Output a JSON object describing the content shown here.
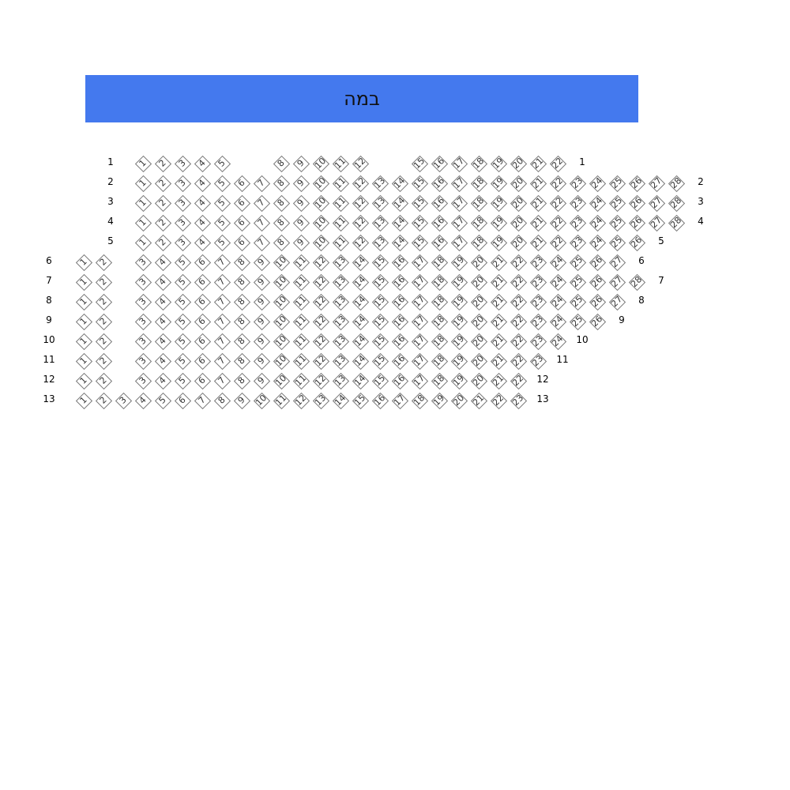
{
  "stage": {
    "label": "במה",
    "color": "#4479ee"
  },
  "rows": [
    {
      "label": "1",
      "seats": [
        1,
        2,
        3,
        4,
        5,
        8,
        9,
        10,
        11,
        12,
        15,
        16,
        17,
        18,
        19,
        20,
        21,
        22
      ]
    },
    {
      "label": "2",
      "seats": [
        1,
        2,
        3,
        4,
        5,
        6,
        7,
        8,
        9,
        10,
        11,
        12,
        13,
        14,
        15,
        16,
        17,
        18,
        19,
        20,
        21,
        22,
        23,
        24,
        25,
        26,
        27,
        28
      ]
    },
    {
      "label": "3",
      "seats": [
        1,
        2,
        3,
        4,
        5,
        6,
        7,
        8,
        9,
        10,
        11,
        12,
        13,
        14,
        15,
        16,
        17,
        18,
        19,
        20,
        21,
        22,
        23,
        24,
        25,
        26,
        27,
        28
      ]
    },
    {
      "label": "4",
      "seats": [
        1,
        2,
        3,
        4,
        5,
        6,
        7,
        8,
        9,
        10,
        11,
        12,
        13,
        14,
        15,
        16,
        17,
        18,
        19,
        20,
        21,
        22,
        23,
        24,
        25,
        26,
        27,
        28
      ]
    },
    {
      "label": "5",
      "seats": [
        1,
        2,
        3,
        4,
        5,
        6,
        7,
        8,
        9,
        10,
        11,
        12,
        13,
        14,
        15,
        16,
        17,
        18,
        19,
        20,
        21,
        22,
        23,
        24,
        25,
        26
      ]
    },
    {
      "label": "6",
      "seats": [
        1,
        2,
        3,
        4,
        5,
        6,
        7,
        8,
        9,
        10,
        11,
        12,
        13,
        14,
        15,
        16,
        17,
        18,
        19,
        20,
        21,
        22,
        23,
        24,
        25,
        26,
        27
      ]
    },
    {
      "label": "7",
      "seats": [
        1,
        2,
        3,
        4,
        5,
        6,
        7,
        8,
        9,
        10,
        11,
        12,
        13,
        14,
        15,
        16,
        17,
        18,
        19,
        20,
        21,
        22,
        23,
        24,
        25,
        26,
        27,
        28
      ]
    },
    {
      "label": "8",
      "seats": [
        1,
        2,
        3,
        4,
        5,
        6,
        7,
        8,
        9,
        10,
        11,
        12,
        13,
        14,
        15,
        16,
        17,
        18,
        19,
        20,
        21,
        22,
        23,
        24,
        25,
        26,
        27
      ]
    },
    {
      "label": "9",
      "seats": [
        1,
        2,
        3,
        4,
        5,
        6,
        7,
        8,
        9,
        10,
        11,
        12,
        13,
        14,
        15,
        16,
        17,
        18,
        19,
        20,
        21,
        22,
        23,
        24,
        25,
        26
      ]
    },
    {
      "label": "10",
      "seats": [
        1,
        2,
        3,
        4,
        5,
        6,
        7,
        8,
        9,
        10,
        11,
        12,
        13,
        14,
        15,
        16,
        17,
        18,
        19,
        20,
        21,
        22,
        23,
        24
      ]
    },
    {
      "label": "11",
      "seats": [
        1,
        2,
        3,
        4,
        5,
        6,
        7,
        8,
        9,
        10,
        11,
        12,
        13,
        14,
        15,
        16,
        17,
        18,
        19,
        20,
        21,
        22,
        23
      ]
    },
    {
      "label": "12",
      "seats": [
        1,
        2,
        3,
        4,
        5,
        6,
        7,
        8,
        9,
        10,
        11,
        12,
        13,
        14,
        15,
        16,
        17,
        18,
        19,
        20,
        21,
        22
      ]
    },
    {
      "label": "13",
      "seats": [
        1,
        2,
        3,
        4,
        5,
        6,
        7,
        8,
        9,
        10,
        11,
        12,
        13,
        14,
        15,
        16,
        17,
        18,
        19,
        20,
        21,
        22,
        23
      ]
    }
  ]
}
